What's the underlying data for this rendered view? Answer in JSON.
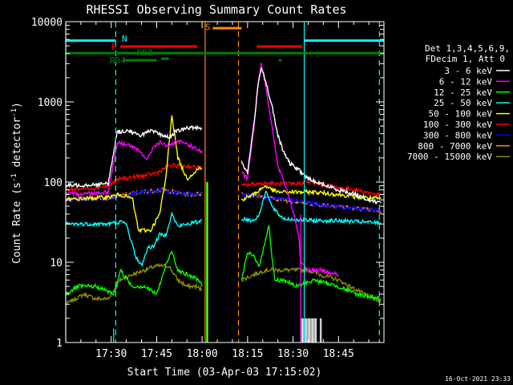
{
  "chart_data": {
    "type": "line",
    "title": "RHESSI Observing Summary Count Rates",
    "xlabel": "Start Time (03-Apr-03 17:15:02)",
    "ylabel_main": "Count Rate (s",
    "ylabel_sup1": "-1",
    "ylabel_mid": " detector",
    "ylabel_sup2": "-1",
    "ylabel_end": ")",
    "footer": "16-Oct-2021 23:33",
    "x_unit": "minutes since 17:15",
    "xlim": [
      0,
      105
    ],
    "ylim": [
      1,
      10000
    ],
    "y_scale": "log",
    "x_ticks": [
      {
        "x": 15,
        "label": "17:30"
      },
      {
        "x": 30,
        "label": "17:45"
      },
      {
        "x": 45,
        "label": "18:00"
      },
      {
        "x": 60,
        "label": "18:15"
      },
      {
        "x": 75,
        "label": "18:30"
      },
      {
        "x": 90,
        "label": "18:45"
      }
    ],
    "y_ticks": [
      {
        "y": 1,
        "label": "1"
      },
      {
        "y": 10,
        "label": "10"
      },
      {
        "y": 100,
        "label": "100"
      },
      {
        "y": 1000,
        "label": "1000"
      },
      {
        "y": 10000,
        "label": "10000"
      }
    ],
    "legend_header": [
      "Det 1,3,4,5,6,9,",
      "FDecim 1, Att 0"
    ],
    "series": [
      {
        "name": "3 - 6 keV",
        "color": "#ffffff",
        "segments": [
          [
            [
              0,
              90
            ],
            [
              14,
              95
            ],
            [
              17,
              420
            ],
            [
              21,
              440
            ],
            [
              24,
              380
            ],
            [
              28,
              430
            ],
            [
              30,
              410
            ],
            [
              34,
              360
            ],
            [
              36,
              420
            ],
            [
              40,
              470
            ],
            [
              44,
              480
            ],
            [
              45,
              470
            ]
          ],
          [
            [
              58,
              180
            ],
            [
              60,
              130
            ],
            [
              62,
              500
            ],
            [
              63.5,
              1600
            ],
            [
              64.5,
              2800
            ],
            [
              66,
              1800
            ],
            [
              68,
              900
            ],
            [
              70,
              380
            ],
            [
              72,
              230
            ],
            [
              74,
              170
            ],
            [
              76,
              150
            ],
            [
              78,
              130
            ],
            [
              80,
              110
            ],
            [
              84,
              95
            ],
            [
              90,
              80
            ],
            [
              96,
              70
            ],
            [
              100,
              60
            ],
            [
              104,
              55
            ]
          ]
        ]
      },
      {
        "name": "6 - 12 keV",
        "color": "#ff00ff",
        "segments": [
          [
            [
              0,
              70
            ],
            [
              14,
              75
            ],
            [
              17,
              310
            ],
            [
              21,
              290
            ],
            [
              25,
              230
            ],
            [
              27,
              190
            ],
            [
              29,
              280
            ],
            [
              31,
              310
            ],
            [
              34,
              280
            ],
            [
              37,
              320
            ],
            [
              40,
              300
            ],
            [
              44,
              250
            ],
            [
              45,
              230
            ]
          ],
          [
            [
              58,
              130
            ],
            [
              60,
              110
            ],
            [
              62,
              450
            ],
            [
              63.5,
              1700
            ],
            [
              64.5,
              3000
            ],
            [
              66,
              1600
            ],
            [
              68,
              500
            ],
            [
              70,
              160
            ],
            [
              72,
              100
            ],
            [
              74,
              60
            ],
            [
              76,
              30
            ],
            [
              77,
              20
            ],
            [
              77.5,
              10
            ],
            [
              78,
              10
            ],
            [
              80,
              8
            ],
            [
              84,
              8
            ],
            [
              90,
              7
            ]
          ]
        ]
      },
      {
        "name": "12 - 25 keV",
        "color": "#00ff00",
        "segments": [
          [
            [
              0,
              4
            ],
            [
              4,
              5
            ],
            [
              10,
              5
            ],
            [
              16,
              4
            ],
            [
              18,
              8
            ],
            [
              22,
              5
            ],
            [
              26,
              5
            ],
            [
              30,
              4
            ],
            [
              33,
              9
            ],
            [
              35,
              14
            ],
            [
              37,
              8
            ],
            [
              40,
              7
            ],
            [
              44,
              6
            ],
            [
              45,
              5
            ]
          ],
          [
            [
              58,
              6
            ],
            [
              60,
              13
            ],
            [
              62,
              12
            ],
            [
              64,
              9
            ],
            [
              66,
              20
            ],
            [
              67,
              30
            ],
            [
              68,
              12
            ],
            [
              69,
              6
            ],
            [
              72,
              6
            ],
            [
              76,
              5
            ],
            [
              82,
              6
            ],
            [
              90,
              5
            ],
            [
              96,
              4
            ],
            [
              104,
              3.5
            ]
          ]
        ]
      },
      {
        "name": "25 - 50 keV",
        "color": "#00ffff",
        "segments": [
          [
            [
              0,
              30
            ],
            [
              14,
              30
            ],
            [
              18,
              32
            ],
            [
              20,
              30
            ],
            [
              23,
              12
            ],
            [
              25,
              9
            ],
            [
              27,
              15
            ],
            [
              29,
              16
            ],
            [
              31,
              22
            ],
            [
              33,
              22
            ],
            [
              35,
              40
            ],
            [
              37,
              28
            ],
            [
              40,
              30
            ],
            [
              44,
              32
            ],
            [
              45,
              34
            ]
          ],
          [
            [
              58,
              35
            ],
            [
              62,
              33
            ],
            [
              64,
              40
            ],
            [
              66,
              80
            ],
            [
              68,
              50
            ],
            [
              70,
              40
            ],
            [
              72,
              35
            ],
            [
              76,
              34
            ],
            [
              82,
              33
            ],
            [
              90,
              33
            ],
            [
              96,
              32
            ],
            [
              104,
              31
            ]
          ]
        ]
      },
      {
        "name": "50 - 100 keV",
        "color": "#ffff00",
        "segments": [
          [
            [
              0,
              60
            ],
            [
              14,
              65
            ],
            [
              18,
              70
            ],
            [
              22,
              62
            ],
            [
              24,
              25
            ],
            [
              28,
              25
            ],
            [
              31,
              40
            ],
            [
              33,
              110
            ],
            [
              35,
              700
            ],
            [
              37,
              200
            ],
            [
              40,
              110
            ],
            [
              44,
              150
            ],
            [
              45,
              145
            ]
          ],
          [
            [
              58,
              60
            ],
            [
              62,
              70
            ],
            [
              64,
              80
            ],
            [
              66,
              90
            ],
            [
              68,
              80
            ],
            [
              70,
              75
            ],
            [
              76,
              75
            ],
            [
              82,
              75
            ],
            [
              90,
              70
            ],
            [
              96,
              65
            ],
            [
              104,
              62
            ]
          ]
        ]
      },
      {
        "name": "100 - 300 keV",
        "color": "#ff0000",
        "segments": [
          [
            [
              0,
              80
            ],
            [
              10,
              85
            ],
            [
              14,
              90
            ],
            [
              18,
              110
            ],
            [
              22,
              115
            ],
            [
              26,
              120
            ],
            [
              30,
              130
            ],
            [
              34,
              160
            ],
            [
              38,
              160
            ],
            [
              42,
              155
            ],
            [
              45,
              150
            ]
          ],
          [
            [
              58,
              90
            ],
            [
              62,
              95
            ],
            [
              66,
              97
            ],
            [
              70,
              95
            ],
            [
              76,
              95
            ],
            [
              80,
              100
            ],
            [
              84,
              95
            ],
            [
              90,
              85
            ],
            [
              96,
              80
            ],
            [
              104,
              68
            ]
          ]
        ]
      },
      {
        "name": "300 - 800 keV",
        "color": "#0000ff",
        "segments": [
          [
            [
              0,
              60
            ],
            [
              10,
              62
            ],
            [
              14,
              62
            ],
            [
              20,
              70
            ],
            [
              26,
              75
            ],
            [
              32,
              78
            ],
            [
              38,
              72
            ],
            [
              42,
              70
            ],
            [
              45,
              72
            ]
          ],
          [
            [
              58,
              70
            ],
            [
              62,
              68
            ],
            [
              66,
              65
            ],
            [
              72,
              60
            ],
            [
              78,
              57
            ],
            [
              84,
              52
            ],
            [
              90,
              50
            ],
            [
              96,
              47
            ],
            [
              104,
              45
            ]
          ]
        ]
      },
      {
        "name": "800 - 7000 keV",
        "color": "#ff8c00",
        "segments": [
          [
            [
              0,
              62
            ],
            [
              10,
              63
            ],
            [
              14,
              64
            ],
            [
              20,
              70
            ],
            [
              26,
              76
            ],
            [
              32,
              80
            ],
            [
              38,
              72
            ],
            [
              42,
              70
            ],
            [
              45,
              72
            ]
          ],
          [
            [
              58,
              72
            ],
            [
              62,
              68
            ],
            [
              66,
              64
            ],
            [
              72,
              60
            ],
            [
              78,
              56
            ],
            [
              84,
              52
            ],
            [
              90,
              50
            ],
            [
              96,
              47
            ],
            [
              104,
              43
            ]
          ]
        ]
      },
      {
        "name": "7000 - 15000 keV",
        "color": "#8b8b00",
        "segments": [
          [
            [
              0,
              3
            ],
            [
              6,
              4
            ],
            [
              10,
              3.5
            ],
            [
              14,
              3.5
            ],
            [
              18,
              6
            ],
            [
              22,
              7
            ],
            [
              26,
              8
            ],
            [
              30,
              9
            ],
            [
              34,
              9
            ],
            [
              37,
              6
            ],
            [
              40,
              5
            ],
            [
              43,
              5
            ],
            [
              45,
              4.5
            ]
          ],
          [
            [
              58,
              6
            ],
            [
              62,
              7
            ],
            [
              66,
              8
            ],
            [
              70,
              8
            ],
            [
              76,
              8
            ],
            [
              80,
              8
            ],
            [
              84,
              7
            ],
            [
              90,
              6
            ],
            [
              96,
              4.5
            ],
            [
              104,
              3.2
            ]
          ]
        ]
      }
    ],
    "spikes": [
      {
        "x": 15.8,
        "ymin": 1,
        "ymax": 1.5,
        "color": "#00ffff"
      },
      {
        "x": 46.5,
        "ymin": 1,
        "ymax": 100,
        "color": "#00ff00"
      },
      {
        "x": 46.8,
        "ymin": 1,
        "ymax": 100,
        "color": "#ffff00"
      },
      {
        "x": 77.5,
        "ymin": 1,
        "ymax": 40,
        "color": "#ff00ff"
      }
    ],
    "noise": [
      {
        "name": "3 - 6 keV",
        "x0": 84,
        "x1": 84.6,
        "ymin": 1,
        "ymax": 2,
        "color": "#ffffff"
      },
      {
        "name": "3 - 6 keV",
        "x0": 77.8,
        "x1": 83,
        "ymin": 1,
        "ymax": 2,
        "color": "#ffffff"
      }
    ],
    "intervals": {
      "vlines_solid": [
        {
          "x": 0,
          "color": "#00ffff"
        },
        {
          "x": 46,
          "color": "#ff8c00"
        },
        {
          "x": 78.7,
          "color": "#00ffff"
        }
      ],
      "vlines_dashed": [
        {
          "x": 16.5,
          "color": "#00ffff"
        },
        {
          "x": 57,
          "color": "#ff8c00"
        },
        {
          "x": 103.5,
          "color": "#00ffff"
        }
      ],
      "bars": [
        {
          "label": "N",
          "color": "#00ffff",
          "x0": 0,
          "x1": 16.5,
          "y": 5800,
          "label_x": 18.5,
          "label_y": 6200
        },
        {
          "label": "",
          "color": "#00ffff",
          "x0": 78.7,
          "x1": 105,
          "y": 5800,
          "label_x": 0,
          "label_y": 0
        },
        {
          "label": "F",
          "color": "#ff0000",
          "x0": 18,
          "x1": 43.5,
          "y": 4900,
          "label_x": 15,
          "label_y": 4900
        },
        {
          "label": "",
          "color": "#ff0000",
          "x0": 63,
          "x1": 78,
          "y": 4900,
          "label_x": 0,
          "label_y": 0
        },
        {
          "label": "S",
          "color": "#ff8c00",
          "x0": 48.5,
          "x1": 58,
          "y": 8300,
          "label_x": 46,
          "label_y": 8600
        },
        {
          "label": "",
          "color": "#008000",
          "x0": 0,
          "x1": 105,
          "y": 4050,
          "label_x": 0,
          "label_y": 0
        },
        {
          "label": "RD0",
          "color": "#008000",
          "x0": 31.5,
          "x1": 34,
          "y": 3450,
          "label_x": 23.5,
          "label_y": 4100
        },
        {
          "label": "RD4",
          "color": "#008000",
          "x0": 19,
          "x1": 30,
          "y": 3300,
          "label_x": 14.5,
          "label_y": 3300
        },
        {
          "label": "",
          "color": "#008000",
          "x0": 70.3,
          "x1": 71.2,
          "y": 3300,
          "label_x": 0,
          "label_y": 0
        }
      ]
    }
  }
}
